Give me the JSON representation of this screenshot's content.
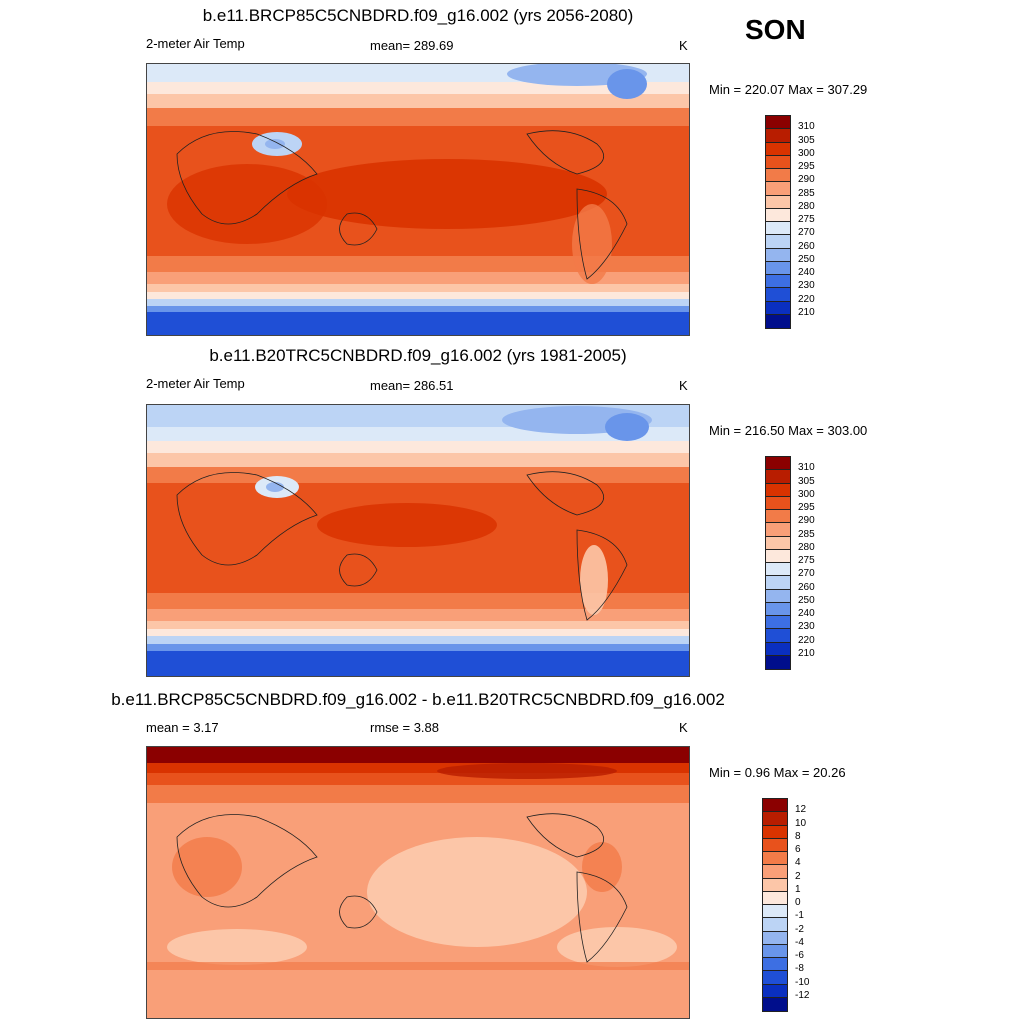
{
  "season": "SON",
  "panels": [
    {
      "title": "b.e11.BRCP85C5CNBDRD.f09_g16.002 (yrs 2056-2080)",
      "left_label": "2-meter Air Temp",
      "center_label": "mean= 289.69",
      "units": "K",
      "minmax": "Min = 220.07 Max = 307.29"
    },
    {
      "title": "b.e11.B20TRC5CNBDRD.f09_g16.002 (yrs 1981-2005)",
      "left_label": "2-meter Air Temp",
      "center_label": "mean= 286.51",
      "units": "K",
      "minmax": "Min = 216.50 Max = 303.00"
    },
    {
      "title": "b.e11.BRCP85C5CNBDRD.f09_g16.002 - b.e11.B20TRC5CNBDRD.f09_g16.002",
      "left_label": "mean =   3.17",
      "center_label": "rmse =   3.88",
      "units": "K",
      "minmax": "Min =   0.96 Max =  20.26"
    }
  ],
  "colorbar_abs": {
    "labels": [
      "310",
      "305",
      "300",
      "295",
      "290",
      "285",
      "280",
      "275",
      "270",
      "260",
      "250",
      "240",
      "230",
      "220",
      "210"
    ],
    "colors": [
      "#8b0000",
      "#b81d00",
      "#d93300",
      "#e8521c",
      "#f27b48",
      "#f99f78",
      "#fcc6a8",
      "#fde8dc",
      "#dce9f8",
      "#bcd4f5",
      "#94b5ef",
      "#6995ea",
      "#3d6fe3",
      "#1f4fd6",
      "#0a2fc0",
      "#000e8c"
    ]
  },
  "colorbar_diff": {
    "labels": [
      "12",
      "10",
      "8",
      "6",
      "4",
      "2",
      "1",
      "0",
      "-1",
      "-2",
      "-4",
      "-6",
      "-8",
      "-10",
      "-12"
    ],
    "colors": [
      "#8b0000",
      "#b81d00",
      "#d93300",
      "#e8521c",
      "#f27b48",
      "#f99f78",
      "#fcc6a8",
      "#fde8dc",
      "#dce9f8",
      "#bcd4f5",
      "#94b5ef",
      "#6995ea",
      "#3d6fe3",
      "#1f4fd6",
      "#0a2fc0",
      "#000e8c"
    ]
  }
}
